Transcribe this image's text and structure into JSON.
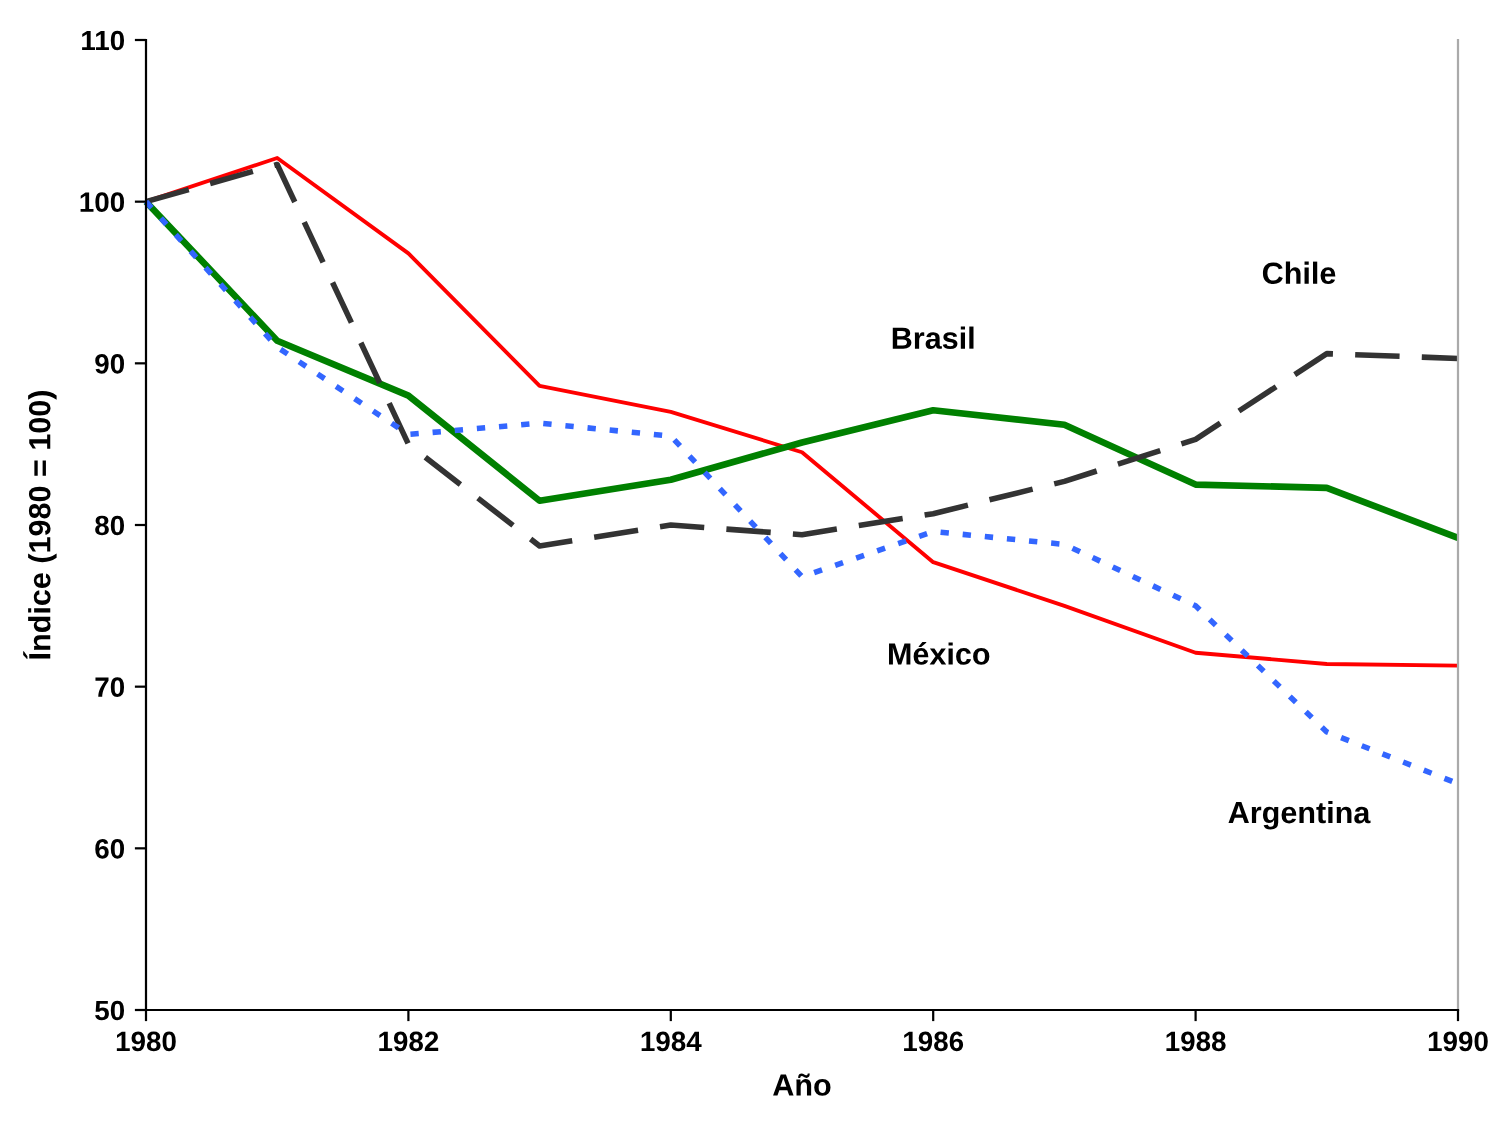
{
  "chart_data": {
    "type": "line",
    "xlabel": "Año",
    "ylabel": "Índice (1980 = 100)",
    "x": [
      1980,
      1981,
      1982,
      1983,
      1984,
      1985,
      1986,
      1987,
      1988,
      1989,
      1990
    ],
    "xlim": [
      1980,
      1990
    ],
    "xticks": [
      1980,
      1982,
      1984,
      1986,
      1988,
      1990
    ],
    "ylim": [
      50,
      110
    ],
    "yticks": [
      50,
      60,
      70,
      80,
      90,
      100,
      110
    ],
    "grid": false,
    "legend": false,
    "marker": "none",
    "series": [
      {
        "name": "México",
        "color": "#ff0000",
        "line_style": "solid",
        "values": [
          100,
          102.7,
          96.8,
          88.6,
          87.0,
          84.5,
          77.7,
          75.0,
          72.1,
          71.4,
          71.3
        ]
      },
      {
        "name": "Brasil",
        "color": "#008000",
        "line_style": "solid",
        "values": [
          100,
          91.4,
          88.0,
          81.5,
          82.8,
          85.1,
          87.1,
          86.2,
          82.5,
          82.3,
          79.2
        ]
      },
      {
        "name": "Chile",
        "color": "#333333",
        "line_style": "dashed",
        "values": [
          100,
          102.3,
          85.0,
          78.7,
          80.0,
          79.4,
          80.7,
          82.7,
          85.3,
          90.6,
          90.3
        ]
      },
      {
        "name": "Argentina",
        "color": "#3366ff",
        "line_style": "dotted",
        "values": [
          100,
          91.0,
          85.6,
          86.3,
          85.5,
          76.8,
          79.6,
          78.8,
          75.0,
          67.2,
          64.0
        ]
      }
    ]
  }
}
